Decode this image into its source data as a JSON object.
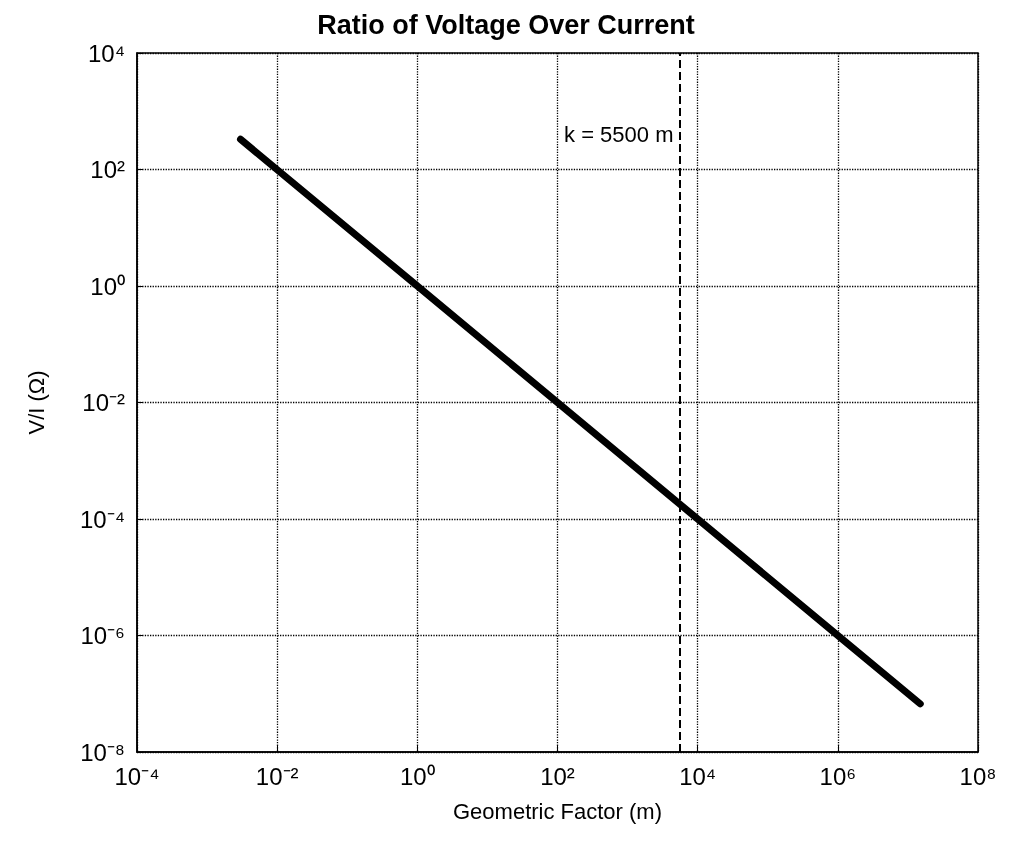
{
  "chart_data": {
    "type": "line",
    "title": "Ratio of Voltage Over Current",
    "xlabel": "Geometric Factor (m)",
    "ylabel": "V/I (Ω)",
    "log": "xy",
    "grid": true,
    "marker": "none",
    "line_style": "solid",
    "x": [
      0.003,
      1,
      100,
      10000,
      1000000,
      15000000
    ],
    "series": [
      {
        "color": "#000000",
        "values": [
          330,
          1,
          0.01,
          0.0001,
          1e-06,
          6.7e-08
        ]
      }
    ],
    "xlim": [
      0.0001,
      100000000
    ],
    "xticks": [
      {
        "value": 0.0001,
        "label": "10⁻⁴"
      },
      {
        "value": 0.01,
        "label": "10⁻²"
      },
      {
        "value": 1,
        "label": "10⁰"
      },
      {
        "value": 100,
        "label": "10²"
      },
      {
        "value": 10000,
        "label": "10⁴"
      },
      {
        "value": 1000000,
        "label": "10⁶"
      },
      {
        "value": 100000000,
        "label": "10⁸"
      }
    ],
    "ylim": [
      1e-08,
      10000
    ],
    "yticks": [
      {
        "value": 1e-08,
        "label": "10⁻⁸"
      },
      {
        "value": 1e-06,
        "label": "10⁻⁶"
      },
      {
        "value": 0.0001,
        "label": "10⁻⁴"
      },
      {
        "value": 0.01,
        "label": "10⁻²"
      },
      {
        "value": 1,
        "label": "10⁰"
      },
      {
        "value": 100,
        "label": "10²"
      },
      {
        "value": 10000,
        "label": "10⁴"
      }
    ],
    "ref_lines": [
      {
        "axis": "x",
        "value": 5500,
        "label": "k = 5500 m",
        "color": "#000000",
        "line_style": "dashed"
      }
    ]
  }
}
